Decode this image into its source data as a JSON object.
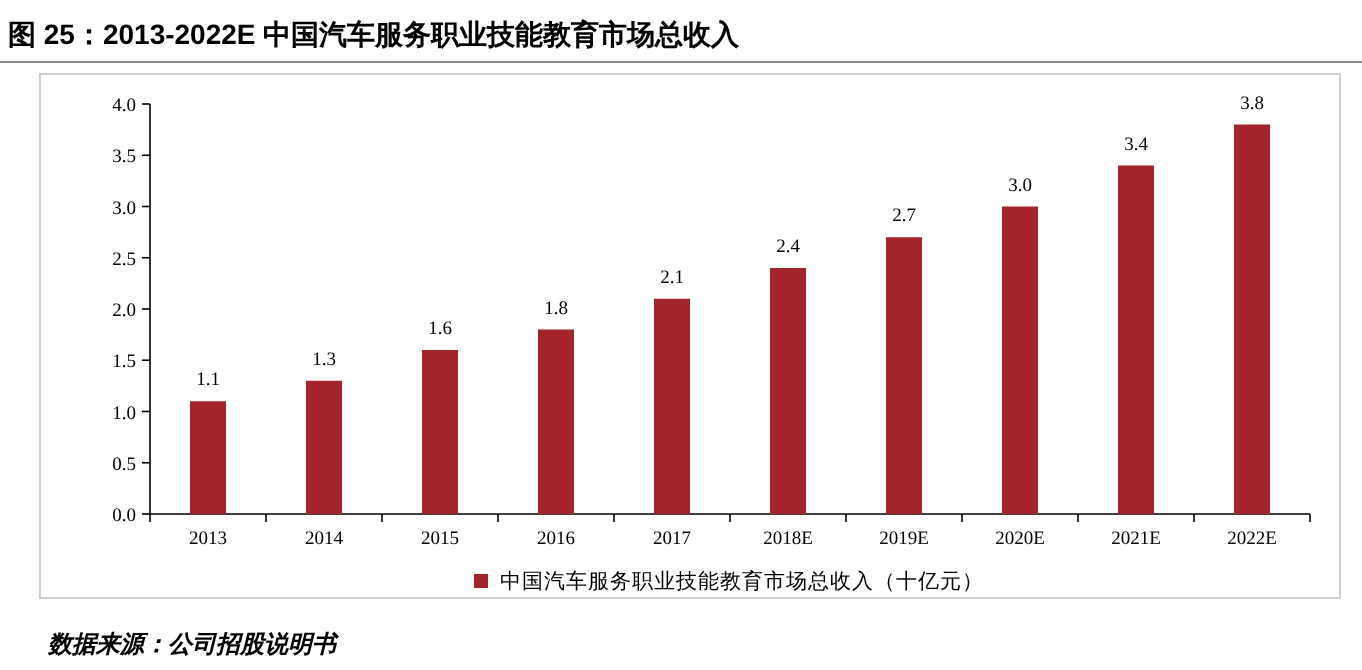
{
  "chart_data": {
    "type": "bar",
    "title": "图 25：2013-2022E 中国汽车服务职业技能教育市场总收入",
    "categories": [
      "2013",
      "2014",
      "2015",
      "2016",
      "2017",
      "2018E",
      "2019E",
      "2020E",
      "2021E",
      "2022E"
    ],
    "series": [
      {
        "name": "中国汽车服务职业技能教育市场总收入（十亿元）",
        "color": "#a3252b",
        "values": [
          1.1,
          1.3,
          1.6,
          1.8,
          2.1,
          2.4,
          2.7,
          3.0,
          3.4,
          3.8
        ],
        "value_labels": [
          "1.1",
          "1.3",
          "1.6",
          "1.8",
          "2.1",
          "2.4",
          "2.7",
          "3.0",
          "3.4",
          "3.8"
        ]
      }
    ],
    "ylim": [
      0,
      4
    ],
    "yticks": [
      {
        "value": 0,
        "label": "0.0"
      },
      {
        "value": 0.5,
        "label": "0.5"
      },
      {
        "value": 1,
        "label": "1.0"
      },
      {
        "value": 1.5,
        "label": "1.5"
      },
      {
        "value": 2,
        "label": "2.0"
      },
      {
        "value": 2.5,
        "label": "2.5"
      },
      {
        "value": 3,
        "label": "3.0"
      },
      {
        "value": 3.5,
        "label": "3.5"
      },
      {
        "value": 4,
        "label": "4.0"
      }
    ],
    "legend": "bottom",
    "grid": false,
    "annotations": [
      "数据来源：公司招股说明书"
    ]
  }
}
